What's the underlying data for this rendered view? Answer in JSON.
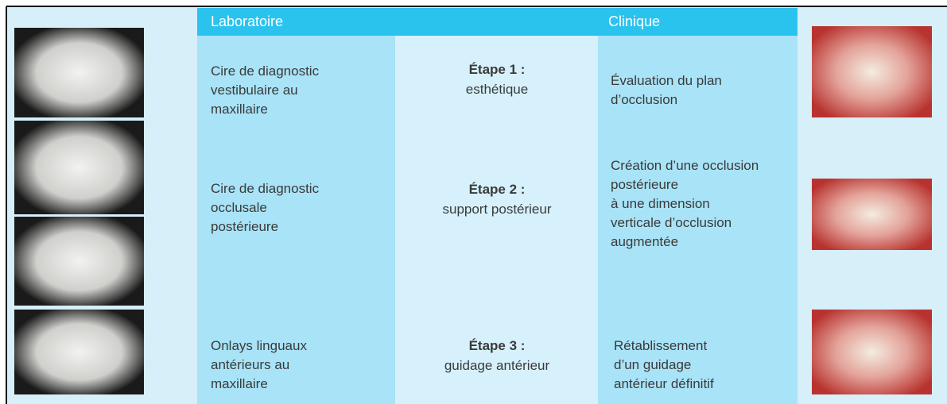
{
  "header": {
    "laboratory": "Laboratoire",
    "clinic": "Clinique"
  },
  "rows": [
    {
      "laboratory": [
        "Cire de diagnostic",
        "vestibulaire au",
        "maxillaire"
      ],
      "step": "Étape 1 :",
      "step_desc": "esthétique",
      "clinic": [
        "Évaluation du plan",
        "d’occlusion"
      ]
    },
    {
      "laboratory": [
        "Cire de diagnostic",
        "occlusale",
        "postérieure"
      ],
      "step": "Étape 2 :",
      "step_desc": "support postérieur",
      "clinic": [
        "Création d’une occlusion",
        "postérieure",
        "à une dimension",
        "verticale d’occlusion",
        "augmentée"
      ]
    },
    {
      "laboratory": [
        "Onlays linguaux",
        "antérieurs au",
        "maxillaire"
      ],
      "step": "Étape 3 :",
      "step_desc": "guidage antérieur",
      "clinic": [
        "Rétablissement",
        "d’un guidage",
        "antérieur définitif"
      ]
    }
  ]
}
